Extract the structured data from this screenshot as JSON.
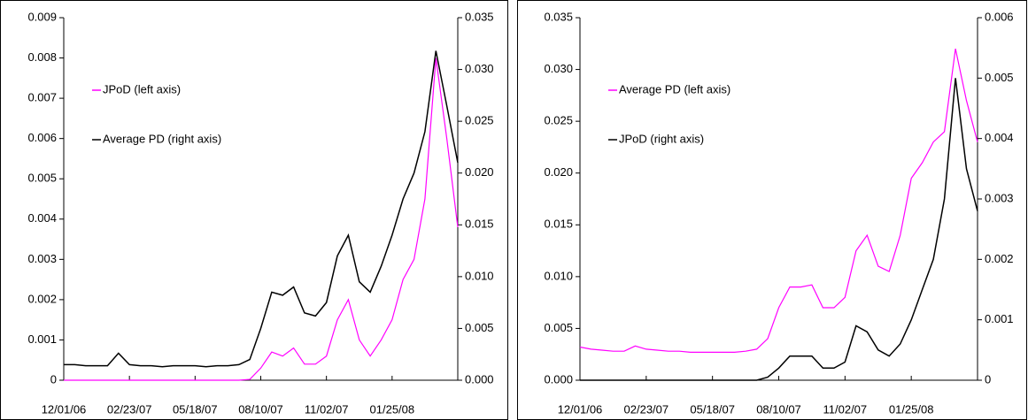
{
  "chart_data": [
    {
      "type": "line",
      "categories": [
        "12/01/06",
        null,
        null,
        null,
        null,
        null,
        "02/23/07",
        null,
        null,
        null,
        null,
        null,
        "05/18/07",
        null,
        null,
        null,
        null,
        null,
        "08/10/07",
        null,
        null,
        null,
        null,
        null,
        "11/02/07",
        null,
        null,
        null,
        null,
        null,
        "01/25/08",
        null,
        null,
        null,
        null,
        null,
        null
      ],
      "ylim": [
        0,
        0.009
      ],
      "yticks": [
        0,
        0.001,
        0.002,
        0.003,
        0.004,
        0.005,
        0.006,
        0.007,
        0.008,
        0.009
      ],
      "y2lim": [
        0,
        0.035
      ],
      "y2ticks": [
        {
          "value": 0,
          "label": "0.000"
        },
        {
          "value": 0.005,
          "label": "0.005"
        },
        {
          "value": 0.01,
          "label": "0.010"
        },
        {
          "value": 0.015,
          "label": "0.015"
        },
        {
          "value": 0.02,
          "label": "0.020"
        },
        {
          "value": 0.025,
          "label": "0.025"
        },
        {
          "value": 0.03,
          "label": "0.030"
        },
        {
          "value": 0.035,
          "label": "0.035"
        }
      ],
      "legend": "upper left",
      "series": [
        {
          "name": "JPoD (left axis)",
          "color": "#ff00ff",
          "axis": "y",
          "values": [
            0,
            0,
            0,
            0,
            0,
            0,
            0,
            0,
            0,
            0,
            0,
            0,
            0,
            0,
            0,
            0,
            0,
            2e-05,
            0.0003,
            0.0007,
            0.0006,
            0.0008,
            0.0004,
            0.0004,
            0.0006,
            0.0015,
            0.002,
            0.001,
            0.0006,
            0.001,
            0.0015,
            0.0025,
            0.003,
            0.0045,
            0.008,
            0.006,
            0.0038
          ]
        },
        {
          "name": "Average PD (right axis)",
          "color": "#000000",
          "axis": "y2",
          "values": [
            0.0015,
            0.0015,
            0.0014,
            0.0014,
            0.0014,
            0.0026,
            0.0015,
            0.0014,
            0.0014,
            0.0013,
            0.0014,
            0.0014,
            0.0014,
            0.0013,
            0.0014,
            0.0014,
            0.0015,
            0.002,
            0.005,
            0.0085,
            0.0082,
            0.009,
            0.0065,
            0.0062,
            0.0075,
            0.012,
            0.014,
            0.0095,
            0.0085,
            0.011,
            0.014,
            0.0175,
            0.02,
            0.024,
            0.0318,
            0.0265,
            0.021
          ]
        }
      ]
    },
    {
      "type": "line",
      "categories": [
        "12/01/06",
        null,
        null,
        null,
        null,
        null,
        "02/23/07",
        null,
        null,
        null,
        null,
        null,
        "05/18/07",
        null,
        null,
        null,
        null,
        null,
        "08/10/07",
        null,
        null,
        null,
        null,
        null,
        "11/02/07",
        null,
        null,
        null,
        null,
        null,
        "01/25/08",
        null,
        null,
        null,
        null,
        null,
        null
      ],
      "ylim": [
        0,
        0.035
      ],
      "yticks": [
        {
          "value": 0,
          "label": "0.000"
        },
        {
          "value": 0.005,
          "label": "0.005"
        },
        {
          "value": 0.01,
          "label": "0.010"
        },
        {
          "value": 0.015,
          "label": "0.015"
        },
        {
          "value": 0.02,
          "label": "0.020"
        },
        {
          "value": 0.025,
          "label": "0.025"
        },
        {
          "value": 0.03,
          "label": "0.030"
        },
        {
          "value": 0.035,
          "label": "0.035"
        }
      ],
      "y2lim": [
        0,
        0.006
      ],
      "y2ticks": [
        0,
        0.001,
        0.002,
        0.003,
        0.004,
        0.005,
        0.006
      ],
      "legend": "upper left",
      "series": [
        {
          "name": "Average PD (left axis)",
          "color": "#ff00ff",
          "axis": "y",
          "values": [
            0.0032,
            0.003,
            0.0029,
            0.0028,
            0.0028,
            0.0033,
            0.003,
            0.0029,
            0.0028,
            0.0028,
            0.0027,
            0.0027,
            0.0027,
            0.0027,
            0.0027,
            0.0028,
            0.003,
            0.004,
            0.007,
            0.009,
            0.009,
            0.0092,
            0.007,
            0.007,
            0.008,
            0.0125,
            0.014,
            0.011,
            0.0105,
            0.014,
            0.0195,
            0.021,
            0.023,
            0.024,
            0.032,
            0.027,
            0.023
          ]
        },
        {
          "name": "JPoD (right axis)",
          "color": "#000000",
          "axis": "y2",
          "values": [
            0,
            0,
            0,
            0,
            0,
            0,
            0,
            0,
            0,
            0,
            0,
            0,
            0,
            0,
            0,
            0,
            0,
            5e-05,
            0.0002,
            0.0004,
            0.0004,
            0.0004,
            0.0002,
            0.0002,
            0.0003,
            0.0009,
            0.0008,
            0.0005,
            0.0004,
            0.0006,
            0.001,
            0.0015,
            0.002,
            0.003,
            0.005,
            0.0035,
            0.0028
          ]
        }
      ]
    }
  ]
}
